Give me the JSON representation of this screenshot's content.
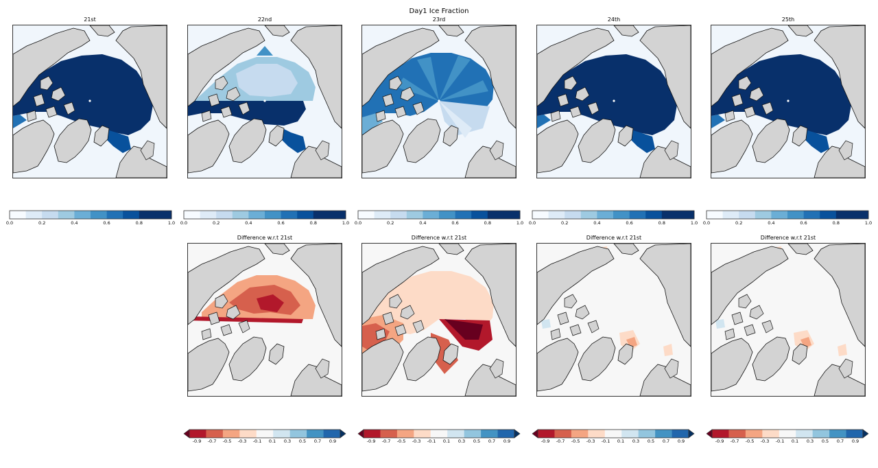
{
  "suptitle": "Day1 Ice Fraction",
  "top_panels": [
    {
      "title": "21st",
      "style": "full"
    },
    {
      "title": "22nd",
      "style": "partial"
    },
    {
      "title": "23rd",
      "style": "radial"
    },
    {
      "title": "24th",
      "style": "full"
    },
    {
      "title": "25th",
      "style": "full"
    }
  ],
  "bottom_panels": [
    {
      "title": "Difference w.r.t 21st",
      "style": "diff-large"
    },
    {
      "title": "Difference w.r.t 21st",
      "style": "diff-radial"
    },
    {
      "title": "Difference w.r.t 21st",
      "style": "diff-small"
    },
    {
      "title": "Difference w.r.t 21st",
      "style": "diff-small"
    }
  ],
  "colors": {
    "land": "#d3d3d3",
    "land_edge": "#111111",
    "ice_full": "#08306b",
    "open_water": "#f0f6fc",
    "diff_background": "#f7f7f7",
    "coast": "#111111",
    "seq_blues": [
      "#f7fbff",
      "#deebf7",
      "#c6dbef",
      "#9ecae1",
      "#6baed6",
      "#4292c6",
      "#2171b5",
      "#08519c",
      "#08306b",
      "#08306b"
    ],
    "div_rdbu": [
      "#67001f",
      "#b2182b",
      "#d6604d",
      "#f4a582",
      "#fddbc7",
      "#f7f7f7",
      "#d1e5f0",
      "#92c5de",
      "#4393c3",
      "#2166ac",
      "#053061"
    ]
  },
  "colorbar_top": {
    "ticks": [
      "0.0",
      "0.2",
      "0.4",
      "0.6",
      "0.8",
      "1.0"
    ]
  },
  "colorbar_bottom": {
    "ticks": [
      "-0.9",
      "-0.7",
      "-0.5",
      "-0.3",
      "-0.1",
      "0.1",
      "0.3",
      "0.5",
      "0.7",
      "0.9"
    ]
  }
}
